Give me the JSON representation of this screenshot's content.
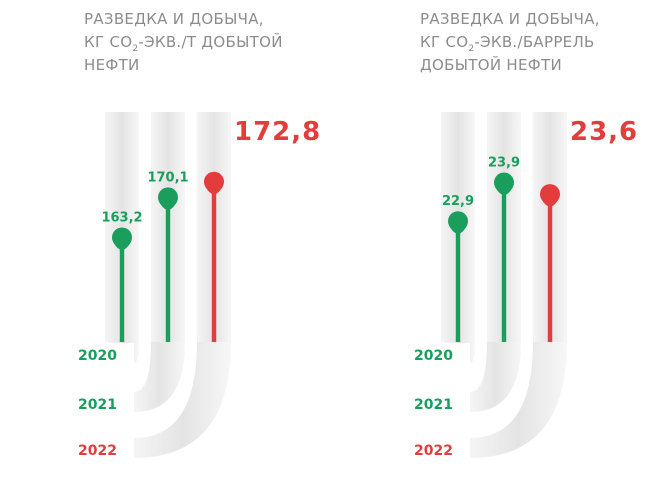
{
  "colors": {
    "green": "#1a9e5c",
    "red": "#e23c3c",
    "title": "#8c8c8c",
    "track": "#eeeeee"
  },
  "panels": [
    {
      "title_line1": "РАЗВЕДКА И ДОБЫЧА,",
      "title_line2_pre": "КГ СО",
      "title_line2_sub": "2",
      "title_line2_post": "-ЭКВ./Т ДОБЫТОЙ",
      "title_line3": "НЕФТИ"
    },
    {
      "title_line1": "РАЗВЕДКА И ДОБЫЧА,",
      "title_line2_pre": "КГ СО",
      "title_line2_sub": "2",
      "title_line2_post": "-ЭКВ./БАРРЕЛЬ",
      "title_line3": "ДОБЫТОЙ НЕФТИ"
    }
  ],
  "chart_data": [
    {
      "type": "bar",
      "categories": [
        "2020",
        "2021",
        "2022"
      ],
      "values": [
        163.2,
        170.1,
        172.8
      ],
      "value_labels": [
        "163,2",
        "170,1",
        "172,8"
      ],
      "colors": [
        "#1a9e5c",
        "#1a9e5c",
        "#e23c3c"
      ],
      "title": "РАЗВЕДКА И ДОБЫЧА, КГ СО2-ЭКВ./Т ДОБЫТОЙ НЕФТИ",
      "ylim": [
        140,
        180
      ]
    },
    {
      "type": "bar",
      "categories": [
        "2020",
        "2021",
        "2022"
      ],
      "values": [
        22.9,
        23.9,
        23.6
      ],
      "value_labels": [
        "22,9",
        "23,9",
        "23,6"
      ],
      "colors": [
        "#1a9e5c",
        "#1a9e5c",
        "#e23c3c"
      ],
      "title": "РАЗВЕДКА И ДОБЫЧА, КГ СО2-ЭКВ./БАРРЕЛЬ ДОБЫТОЙ НЕФТИ",
      "ylim": [
        19,
        25
      ]
    }
  ]
}
